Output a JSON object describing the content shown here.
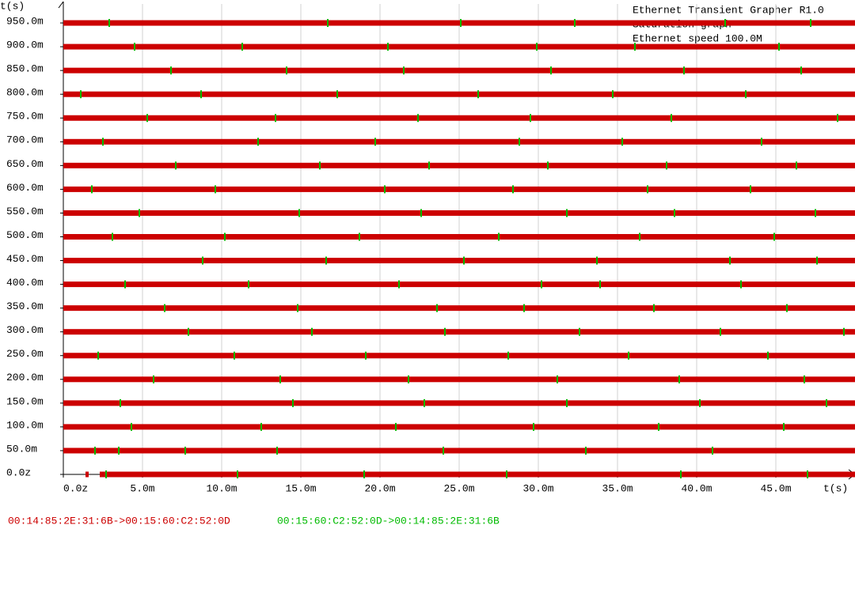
{
  "chart_data": {
    "type": "saturation",
    "title": "Ethernet Transient Grapher R1.0",
    "subtitle": "Saturation graph",
    "annotation": "Ethernet speed 100.0M",
    "ylabel": "t(s)",
    "xlabel": "t(s)",
    "xlim": [
      0,
      0.05
    ],
    "ylim": [
      0,
      0.99
    ],
    "xticks": [
      {
        "value": 0,
        "label": "0.0z"
      },
      {
        "value": 0.005,
        "label": "5.0m"
      },
      {
        "value": 0.01,
        "label": "10.0m"
      },
      {
        "value": 0.015,
        "label": "15.0m"
      },
      {
        "value": 0.02,
        "label": "20.0m"
      },
      {
        "value": 0.025,
        "label": "25.0m"
      },
      {
        "value": 0.03,
        "label": "30.0m"
      },
      {
        "value": 0.035,
        "label": "35.0m"
      },
      {
        "value": 0.04,
        "label": "40.0m"
      },
      {
        "value": 0.045,
        "label": "45.0m"
      }
    ],
    "yticks": [
      {
        "value": 0,
        "label": "0.0z"
      },
      {
        "value": 0.05,
        "label": "50.0m"
      },
      {
        "value": 0.1,
        "label": "100.0m"
      },
      {
        "value": 0.15,
        "label": "150.0m"
      },
      {
        "value": 0.2,
        "label": "200.0m"
      },
      {
        "value": 0.25,
        "label": "250.0m"
      },
      {
        "value": 0.3,
        "label": "300.0m"
      },
      {
        "value": 0.35,
        "label": "350.0m"
      },
      {
        "value": 0.4,
        "label": "400.0m"
      },
      {
        "value": 0.45,
        "label": "450.0m"
      },
      {
        "value": 0.5,
        "label": "500.0m"
      },
      {
        "value": 0.55,
        "label": "550.0m"
      },
      {
        "value": 0.6,
        "label": "600.0m"
      },
      {
        "value": 0.65,
        "label": "650.0m"
      },
      {
        "value": 0.7,
        "label": "700.0m"
      },
      {
        "value": 0.75,
        "label": "750.0m"
      },
      {
        "value": 0.8,
        "label": "800.0m"
      },
      {
        "value": 0.85,
        "label": "850.0m"
      },
      {
        "value": 0.9,
        "label": "900.0m"
      },
      {
        "value": 0.95,
        "label": "950.0m"
      }
    ],
    "grid": true,
    "series": [
      {
        "name": "00:14:85:2E:31:6B->00:15:60:C2:52:0D",
        "color": "#cc0000",
        "values": [
          [
            [
              0.0014,
              0.0016
            ],
            [
              0.0023,
              0.05
            ]
          ],
          [
            [
              0,
              0.05
            ]
          ],
          [
            [
              0,
              0.05
            ]
          ],
          [
            [
              0,
              0.05
            ]
          ],
          [
            [
              0,
              0.05
            ]
          ],
          [
            [
              0,
              0.05
            ]
          ],
          [
            [
              0,
              0.05
            ]
          ],
          [
            [
              0,
              0.05
            ]
          ],
          [
            [
              0,
              0.05
            ]
          ],
          [
            [
              0,
              0.05
            ]
          ],
          [
            [
              0,
              0.05
            ]
          ],
          [
            [
              0,
              0.05
            ]
          ],
          [
            [
              0,
              0.05
            ]
          ],
          [
            [
              0,
              0.05
            ]
          ],
          [
            [
              0,
              0.05
            ]
          ],
          [
            [
              0,
              0.05
            ]
          ],
          [
            [
              0,
              0.05
            ]
          ],
          [
            [
              0,
              0.05
            ]
          ],
          [
            [
              0,
              0.05
            ]
          ],
          [
            [
              0,
              0.05
            ]
          ]
        ]
      },
      {
        "name": "00:15:60:C2:52:0D->00:14:85:2E:31:6B",
        "color": "#00bb00",
        "values": [
          [
            0.0027,
            0.011,
            0.019,
            0.028,
            0.039,
            0.047
          ],
          [
            0.002,
            0.0035,
            0.0077,
            0.0135,
            0.024,
            0.033,
            0.041
          ],
          [
            0.0043,
            0.0125,
            0.021,
            0.0297,
            0.0376,
            0.0455
          ],
          [
            0.0036,
            0.0145,
            0.0228,
            0.0318,
            0.0402,
            0.0482
          ],
          [
            0.0057,
            0.0137,
            0.0218,
            0.0312,
            0.0389,
            0.0468
          ],
          [
            0.0022,
            0.0108,
            0.0191,
            0.0281,
            0.0357,
            0.0445
          ],
          [
            0.0079,
            0.0157,
            0.0241,
            0.0326,
            0.0415,
            0.0493
          ],
          [
            0.0064,
            0.0148,
            0.0236,
            0.0291,
            0.0373,
            0.0457
          ],
          [
            0.0039,
            0.0117,
            0.0212,
            0.0302,
            0.0339,
            0.0428
          ],
          [
            0.0088,
            0.0166,
            0.0253,
            0.0337,
            0.0421,
            0.0476
          ],
          [
            0.0031,
            0.0102,
            0.0187,
            0.0275,
            0.0364,
            0.0449
          ],
          [
            0.0048,
            0.0149,
            0.0226,
            0.0318,
            0.0386,
            0.0475
          ],
          [
            0.0018,
            0.0096,
            0.0203,
            0.0284,
            0.0369,
            0.0434
          ],
          [
            0.0071,
            0.0162,
            0.0231,
            0.0306,
            0.0381,
            0.0463
          ],
          [
            0.0025,
            0.0123,
            0.0197,
            0.0288,
            0.0353,
            0.0441
          ],
          [
            0.0053,
            0.0134,
            0.0224,
            0.0295,
            0.0384,
            0.0489
          ],
          [
            0.0011,
            0.0087,
            0.0173,
            0.0262,
            0.0347,
            0.0431
          ],
          [
            0.0068,
            0.0141,
            0.0215,
            0.0308,
            0.0392,
            0.0466
          ],
          [
            0.0045,
            0.0113,
            0.0205,
            0.0299,
            0.0361,
            0.0452
          ],
          [
            0.0029,
            0.0167,
            0.0251,
            0.0323,
            0.0418,
            0.0472
          ]
        ]
      }
    ]
  }
}
